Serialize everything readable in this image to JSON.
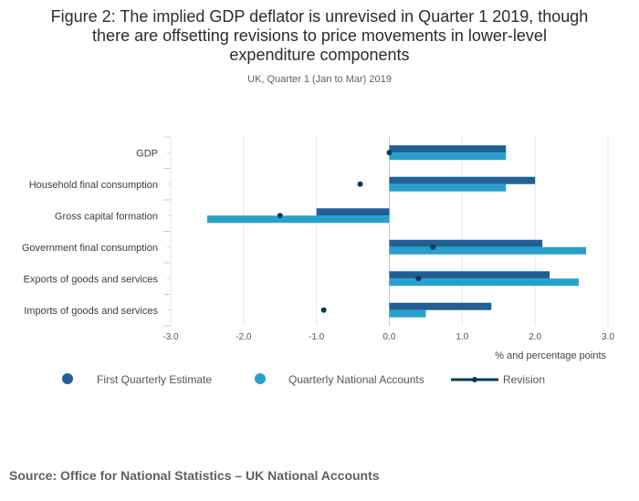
{
  "chart_data": {
    "type": "bar",
    "orientation": "horizontal",
    "title": "Figure 2: The implied GDP deflator is unrevised in Quarter 1 2019, though there are offsetting revisions to price movements in lower-level expenditure components",
    "title_lines": [
      "Figure 2: The implied GDP deflator is unrevised in Quarter 1 2019, though",
      "there are offsetting revisions to price movements in lower-level",
      "expenditure components"
    ],
    "subtitle": "UK, Quarter 1 (Jan to Mar) 2019",
    "categories": [
      "GDP",
      "Household final consumption",
      "Gross capital formation",
      "Government final consumption",
      "Exports of goods and services",
      "Imports of goods and services"
    ],
    "series": [
      {
        "name": "First Quarterly Estimate",
        "type": "bar",
        "color": "#206095",
        "values": [
          1.6,
          2.0,
          -1.0,
          2.1,
          2.2,
          1.4
        ]
      },
      {
        "name": "Quarterly National Accounts",
        "type": "bar",
        "color": "#27a0cc",
        "values": [
          1.6,
          1.6,
          -2.5,
          2.7,
          2.6,
          0.5
        ]
      },
      {
        "name": "Revision",
        "type": "marker",
        "color": "#003c57",
        "values": [
          0.0,
          -0.4,
          -1.5,
          0.6,
          0.4,
          -0.9
        ]
      }
    ],
    "xlim": [
      -3.0,
      3.0
    ],
    "x_ticks": [
      -3.0,
      -2.0,
      -1.0,
      0.0,
      1.0,
      2.0,
      3.0
    ],
    "x_tick_labels": [
      "-3.0",
      "-2.0",
      "-1.0",
      "0.0",
      "1.0",
      "2.0",
      "3.0"
    ],
    "xlabel": "% and percentage points",
    "ylabel": "",
    "grid": "vertical",
    "legend_position": "bottom"
  },
  "source": "Source: Office for National Statistics – UK National Accounts"
}
